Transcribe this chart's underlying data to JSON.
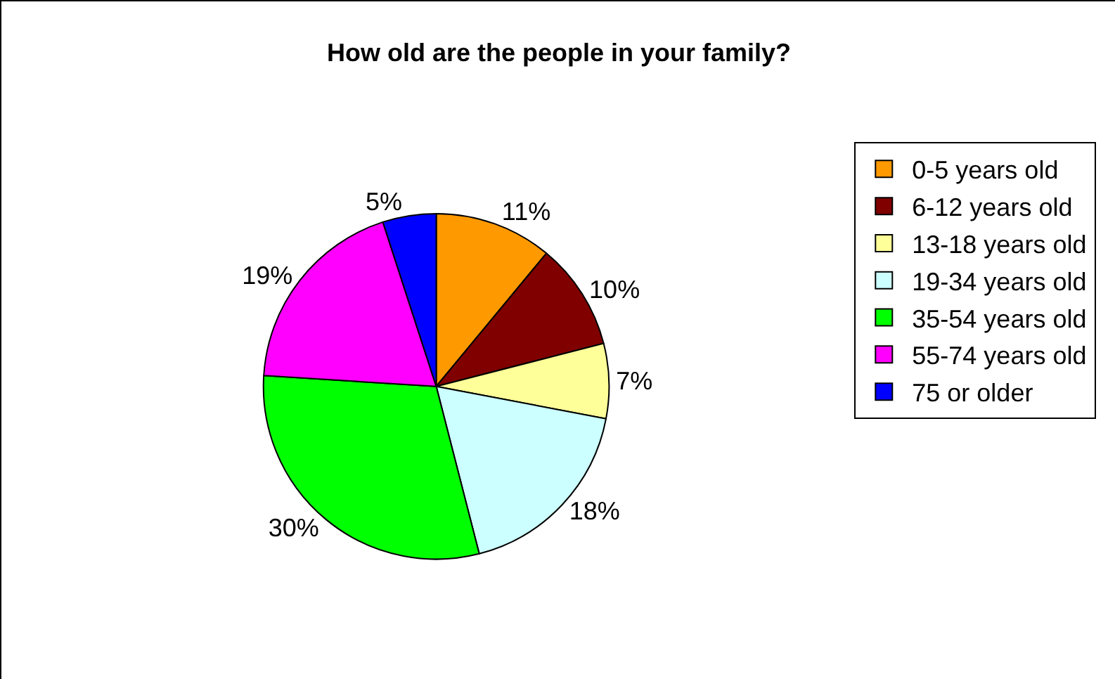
{
  "chart_data": {
    "type": "pie",
    "title": "How old are the people in your family?",
    "categories": [
      "0-5 years old",
      "6-12 years old",
      "13-18 years old",
      "19-34 years old",
      "35-54 years old",
      "55-74 years old",
      "75 or older"
    ],
    "values": [
      11,
      10,
      7,
      18,
      30,
      19,
      5
    ],
    "value_labels": [
      "11%",
      "10%",
      "7%",
      "18%",
      "30%",
      "19%",
      "5%"
    ],
    "colors": [
      "#ff9900",
      "#800000",
      "#ffff99",
      "#ccffff",
      "#00ff00",
      "#ff00ff",
      "#0000ff"
    ],
    "legend": "right"
  }
}
